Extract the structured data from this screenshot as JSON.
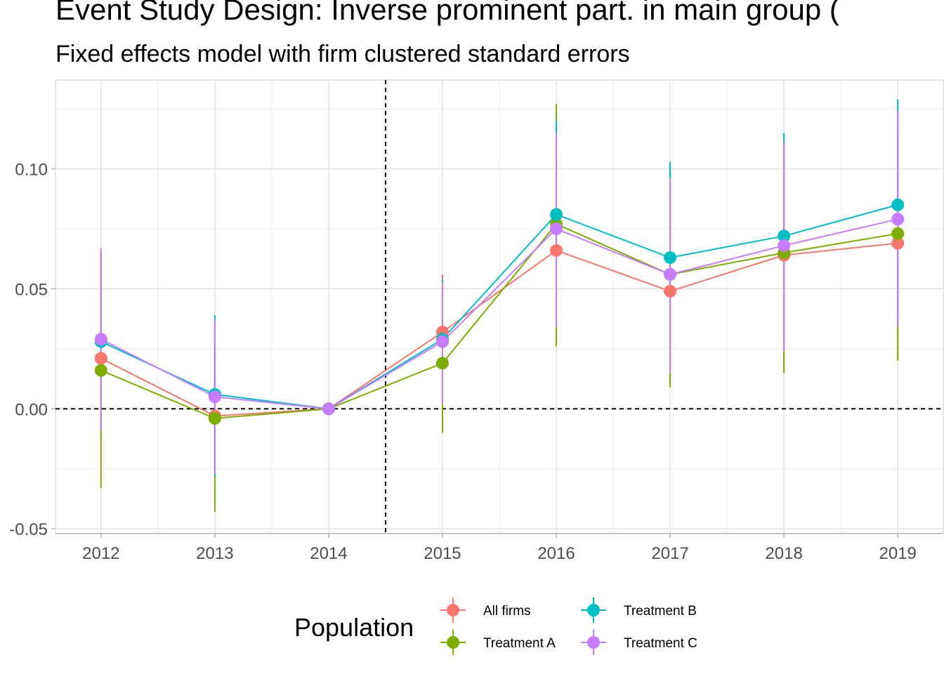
{
  "chart_data": {
    "type": "line",
    "title": "Event Study Design: Inverse prominent part. in main group (",
    "subtitle": "Fixed effects model with firm clustered standard errors",
    "xlabel": "",
    "ylabel": "",
    "x": [
      2012,
      2013,
      2014,
      2015,
      2016,
      2017,
      2018,
      2019
    ],
    "x_tick_labels": [
      "2012",
      "2013",
      "2014",
      "2015",
      "2016",
      "2017",
      "2018",
      "2019"
    ],
    "ylim": [
      -0.052,
      0.137
    ],
    "y_ticks": [
      -0.05,
      0.0,
      0.05,
      0.1
    ],
    "y_tick_labels": [
      "-0.05",
      "0.00",
      "0.05",
      "0.10"
    ],
    "reference_lines": {
      "vertical_x": 2014.5,
      "horizontal_y": 0.0,
      "style": "dashed"
    },
    "grid": true,
    "legend": {
      "title": "Population",
      "position": "bottom"
    },
    "series": [
      {
        "name": "All firms",
        "color": "#F8766D",
        "values": [
          0.021,
          -0.003,
          0.0,
          0.032,
          0.066,
          0.049,
          0.064,
          0.069
        ],
        "ci_low": [
          -0.011,
          -0.029,
          0.0,
          0.003,
          0.027,
          0.01,
          0.015,
          0.021
        ],
        "ci_high": [
          0.053,
          0.026,
          0.0,
          0.056,
          0.106,
          0.088,
          0.112,
          0.117
        ]
      },
      {
        "name": "Treatment A",
        "color": "#7CAE00",
        "values": [
          0.016,
          -0.004,
          0.0,
          0.019,
          0.077,
          0.056,
          0.065,
          0.073
        ],
        "ci_low": [
          -0.033,
          -0.043,
          0.0,
          -0.01,
          0.026,
          0.009,
          0.015,
          0.02
        ],
        "ci_high": [
          0.065,
          0.035,
          0.0,
          0.048,
          0.127,
          0.102,
          0.114,
          0.126
        ]
      },
      {
        "name": "Treatment B",
        "color": "#00BFC4",
        "values": [
          0.028,
          0.006,
          0.0,
          0.029,
          0.081,
          0.063,
          0.072,
          0.085
        ],
        "ci_low": [
          -0.009,
          -0.028,
          0.0,
          0.004,
          0.036,
          0.016,
          0.026,
          0.036
        ],
        "ci_high": [
          0.066,
          0.039,
          0.0,
          0.054,
          0.12,
          0.103,
          0.115,
          0.129
        ]
      },
      {
        "name": "Treatment C",
        "color": "#C77CFF",
        "values": [
          0.029,
          0.005,
          0.0,
          0.028,
          0.075,
          0.056,
          0.068,
          0.079
        ],
        "ci_low": [
          -0.009,
          -0.027,
          0.0,
          0.002,
          0.034,
          0.015,
          0.024,
          0.034
        ],
        "ci_high": [
          0.067,
          0.037,
          0.0,
          0.053,
          0.115,
          0.096,
          0.111,
          0.124
        ]
      }
    ]
  }
}
